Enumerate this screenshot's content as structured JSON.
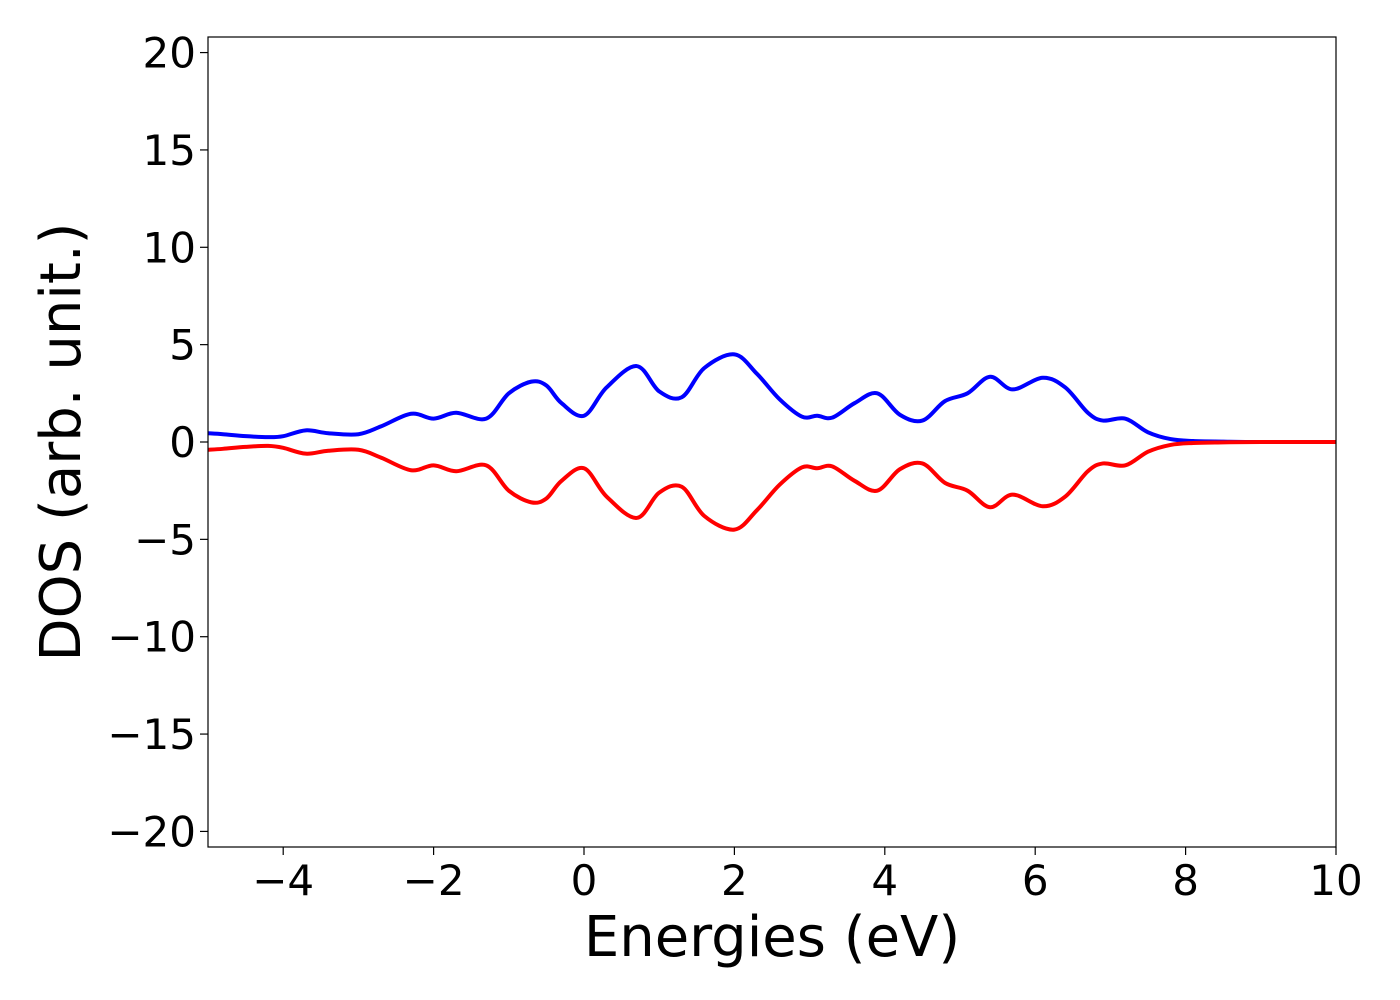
{
  "chart_data": {
    "type": "line",
    "title": "",
    "xlabel": "Energies (eV)",
    "ylabel": "DOS (arb. unit.)",
    "xlim": [
      -5,
      10
    ],
    "ylim": [
      -20.8,
      20.8
    ],
    "xticks": [
      -4,
      -2,
      0,
      2,
      4,
      6,
      8,
      10
    ],
    "xtick_labels": [
      "−4",
      "−2",
      "0",
      "2",
      "4",
      "6",
      "8",
      "10"
    ],
    "yticks": [
      -20,
      -15,
      -10,
      -5,
      0,
      5,
      10,
      15,
      20
    ],
    "ytick_labels": [
      "−20",
      "−15",
      "−10",
      "−5",
      "0",
      "5",
      "10",
      "15",
      "20"
    ],
    "grid": false,
    "legend": "none",
    "series": [
      {
        "color": "#0000ff",
        "x": [
          -5.0,
          -4.8,
          -4.5,
          -4.2,
          -4.0,
          -3.7,
          -3.4,
          -3.0,
          -2.7,
          -2.3,
          -2.0,
          -1.7,
          -1.3,
          -1.0,
          -0.7,
          -0.5,
          -0.3,
          0.0,
          0.3,
          0.7,
          1.0,
          1.3,
          1.6,
          2.0,
          2.3,
          2.6,
          2.9,
          3.1,
          3.3,
          3.6,
          3.9,
          4.2,
          4.5,
          4.8,
          5.1,
          5.4,
          5.7,
          6.1,
          6.4,
          6.7,
          6.9,
          7.2,
          7.5,
          7.8,
          8.1,
          8.5,
          9.0,
          10.0
        ],
        "y": [
          0.45,
          0.4,
          0.3,
          0.25,
          0.3,
          0.6,
          0.45,
          0.4,
          0.8,
          1.45,
          1.2,
          1.5,
          1.2,
          2.5,
          3.1,
          2.9,
          2.0,
          1.35,
          2.8,
          3.9,
          2.6,
          2.3,
          3.8,
          4.5,
          3.5,
          2.2,
          1.3,
          1.35,
          1.25,
          2.0,
          2.5,
          1.4,
          1.1,
          2.1,
          2.5,
          3.35,
          2.7,
          3.3,
          2.8,
          1.5,
          1.1,
          1.2,
          0.5,
          0.15,
          0.05,
          0.02,
          0.0,
          0.0
        ]
      },
      {
        "color": "#ff0000",
        "x": [
          -5.0,
          -4.8,
          -4.5,
          -4.2,
          -4.0,
          -3.7,
          -3.4,
          -3.0,
          -2.7,
          -2.3,
          -2.0,
          -1.7,
          -1.3,
          -1.0,
          -0.7,
          -0.5,
          -0.3,
          0.0,
          0.3,
          0.7,
          1.0,
          1.3,
          1.6,
          2.0,
          2.3,
          2.6,
          2.9,
          3.1,
          3.3,
          3.6,
          3.9,
          4.2,
          4.5,
          4.8,
          5.1,
          5.4,
          5.7,
          6.1,
          6.4,
          6.7,
          6.9,
          7.2,
          7.5,
          7.8,
          8.1,
          8.5,
          9.0,
          10.0
        ],
        "y": [
          -0.4,
          -0.35,
          -0.25,
          -0.2,
          -0.3,
          -0.6,
          -0.45,
          -0.4,
          -0.8,
          -1.45,
          -1.2,
          -1.5,
          -1.2,
          -2.5,
          -3.1,
          -2.9,
          -2.0,
          -1.35,
          -2.8,
          -3.9,
          -2.6,
          -2.3,
          -3.8,
          -4.5,
          -3.5,
          -2.2,
          -1.3,
          -1.35,
          -1.25,
          -2.0,
          -2.5,
          -1.4,
          -1.1,
          -2.1,
          -2.5,
          -3.35,
          -2.7,
          -3.3,
          -2.8,
          -1.5,
          -1.1,
          -1.2,
          -0.5,
          -0.15,
          -0.05,
          -0.02,
          0.0,
          0.0
        ]
      }
    ]
  }
}
